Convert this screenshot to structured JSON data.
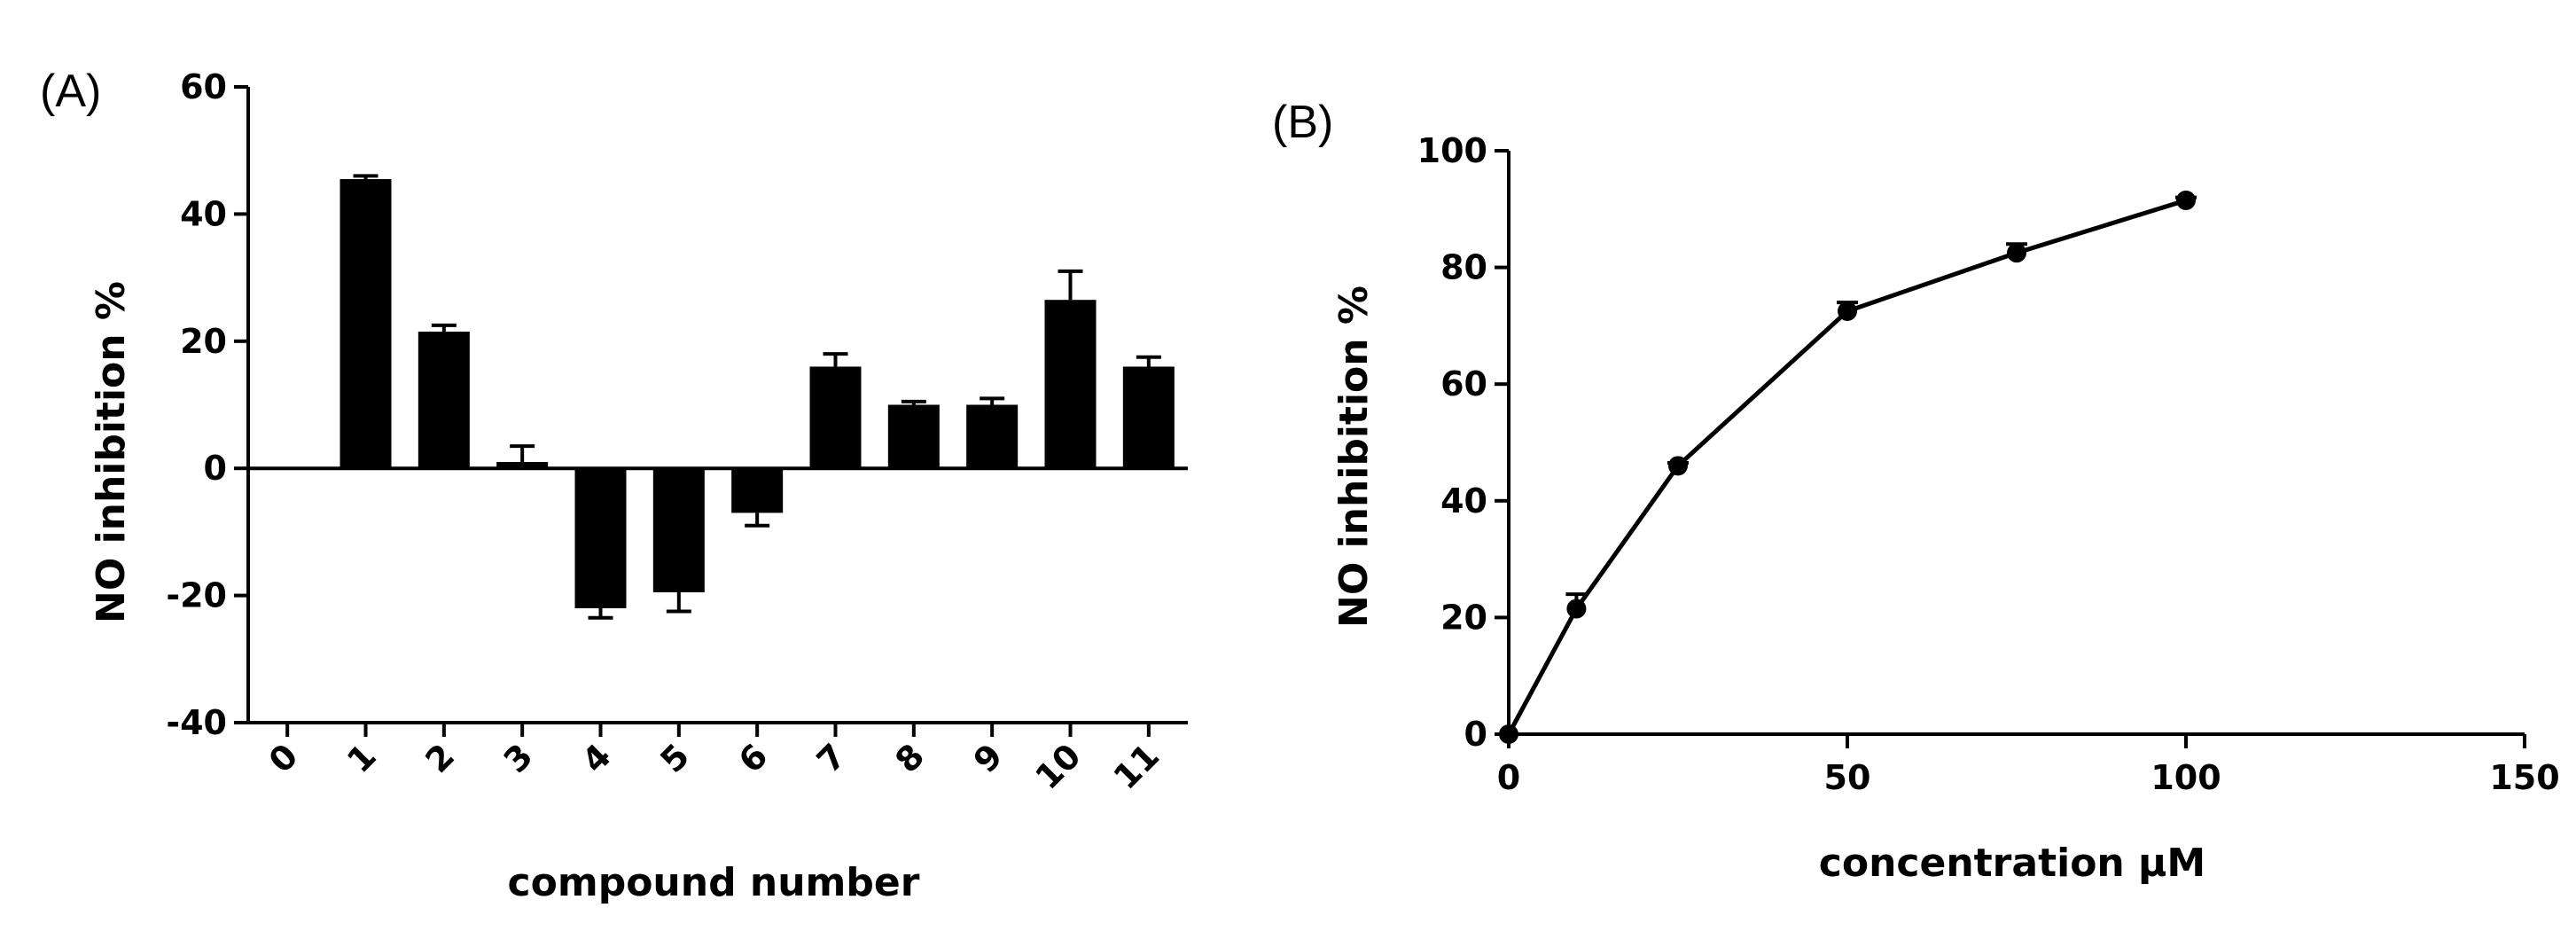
{
  "chart_data": [
    {
      "panel_label": "(A)",
      "type": "bar",
      "xlabel": "compound number",
      "ylabel": "NO inhibition %",
      "ylim": [
        -40,
        60
      ],
      "yticks": [
        "60",
        "40",
        "20",
        "0",
        "-20",
        "-40"
      ],
      "categories": [
        "0",
        "1",
        "2",
        "3",
        "4",
        "5",
        "6",
        "7",
        "8",
        "9",
        "10",
        "11"
      ],
      "values": [
        0,
        45.5,
        21.5,
        1,
        -22,
        -19.5,
        -7,
        16,
        10,
        10,
        26.5,
        16
      ],
      "errors": [
        0,
        0.5,
        1,
        2.5,
        1.5,
        3,
        2,
        2,
        0.5,
        1,
        4.5,
        1.5
      ]
    },
    {
      "panel_label": "(B)",
      "type": "line",
      "xlabel": "concentration μM",
      "ylabel": "NO inhibition %",
      "xlim": [
        0,
        150
      ],
      "ylim": [
        0,
        100
      ],
      "xticks": [
        "0",
        "50",
        "100",
        "150"
      ],
      "yticks": [
        "100",
        "80",
        "60",
        "40",
        "20",
        "0"
      ],
      "x": [
        0,
        10,
        25,
        50,
        75,
        100
      ],
      "y": [
        0,
        21.5,
        46,
        72.5,
        82.5,
        91.5
      ],
      "errors": [
        0,
        2.5,
        0.5,
        1.5,
        1.5,
        0.5
      ]
    }
  ]
}
